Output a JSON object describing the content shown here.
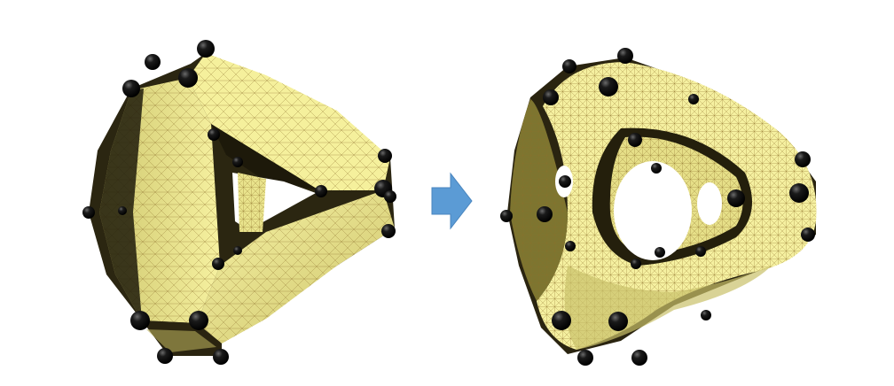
{
  "figure": {
    "panels": [
      {
        "id": "left",
        "caption": ""
      },
      {
        "id": "right",
        "caption": ""
      }
    ],
    "arrow": {
      "direction": "right",
      "color": "#5b9bd5"
    },
    "colors": {
      "surface": "#f4ef96",
      "surface_shade": "#d9d279",
      "surface_dark": "#2a2410",
      "mesh_line": "#8a6d2a",
      "control_point": "#111111"
    }
  }
}
